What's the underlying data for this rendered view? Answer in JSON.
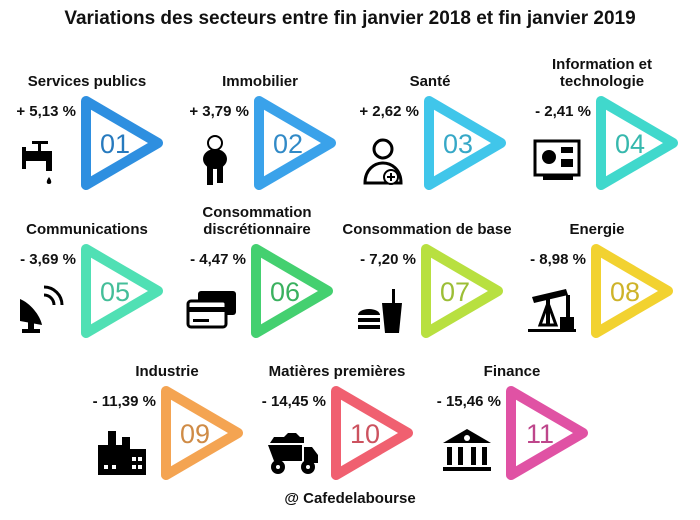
{
  "title": "Variations des secteurs entre fin janvier 2018 et fin janvier 2019",
  "footer": "@ Cafedelabourse",
  "sectors": [
    {
      "number": "01",
      "name": "Services publics",
      "variation": "+ 5,13 %",
      "color": "#2e8fe0",
      "icon": "faucet-icon"
    },
    {
      "number": "02",
      "name": "Immobilier",
      "variation": "+ 3,79 %",
      "color": "#3aa2ea",
      "icon": "keys-icon"
    },
    {
      "number": "03",
      "name": "Santé",
      "variation": "+ 2,62 %",
      "color": "#40c6ea",
      "icon": "person-plus-icon"
    },
    {
      "number": "04",
      "name": "Information et technologie",
      "variation": "- 2,41 %",
      "color": "#40d8cc",
      "icon": "circuit-board-icon"
    },
    {
      "number": "05",
      "name": "Communications",
      "variation": "- 3,69 %",
      "color": "#50e0b4",
      "icon": "satellite-dish-icon"
    },
    {
      "number": "06",
      "name": "Consommation discrétionnaire",
      "variation": "- 4,47 %",
      "color": "#44d070",
      "icon": "credit-cards-icon"
    },
    {
      "number": "07",
      "name": "Consommation de base",
      "variation": "- 7,20 %",
      "color": "#b8e040",
      "icon": "burger-drink-icon"
    },
    {
      "number": "08",
      "name": "Energie",
      "variation": "- 8,98 %",
      "color": "#f2d230",
      "icon": "oil-pump-icon"
    },
    {
      "number": "09",
      "name": "Industrie",
      "variation": "- 11,39 %",
      "color": "#f4a452",
      "icon": "factory-icon"
    },
    {
      "number": "10",
      "name": "Matières  premières",
      "variation": "- 14,45 %",
      "color": "#f06070",
      "icon": "mining-truck-icon"
    },
    {
      "number": "11",
      "name": "Finance",
      "variation": "- 15,46 %",
      "color": "#e052a4",
      "icon": "bank-icon"
    }
  ]
}
